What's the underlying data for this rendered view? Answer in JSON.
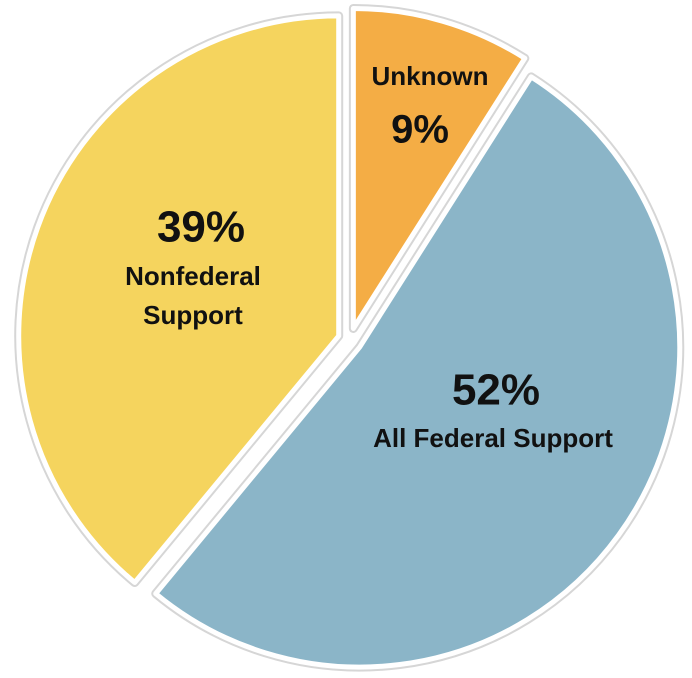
{
  "chart_data": {
    "type": "pie",
    "title": "",
    "start_angle_deg": 0,
    "direction": "clockwise",
    "slices": [
      {
        "label_lines": [
          "Unknown"
        ],
        "value": 9,
        "value_label": "9%",
        "color": "#f4ad45"
      },
      {
        "label_lines": [
          "All Federal Support"
        ],
        "value": 52,
        "value_label": "52%",
        "color": "#8bb5c8"
      },
      {
        "label_lines": [
          "Nonfederal",
          "Support"
        ],
        "value": 39,
        "value_label": "39%",
        "color": "#f5d45e"
      }
    ]
  }
}
